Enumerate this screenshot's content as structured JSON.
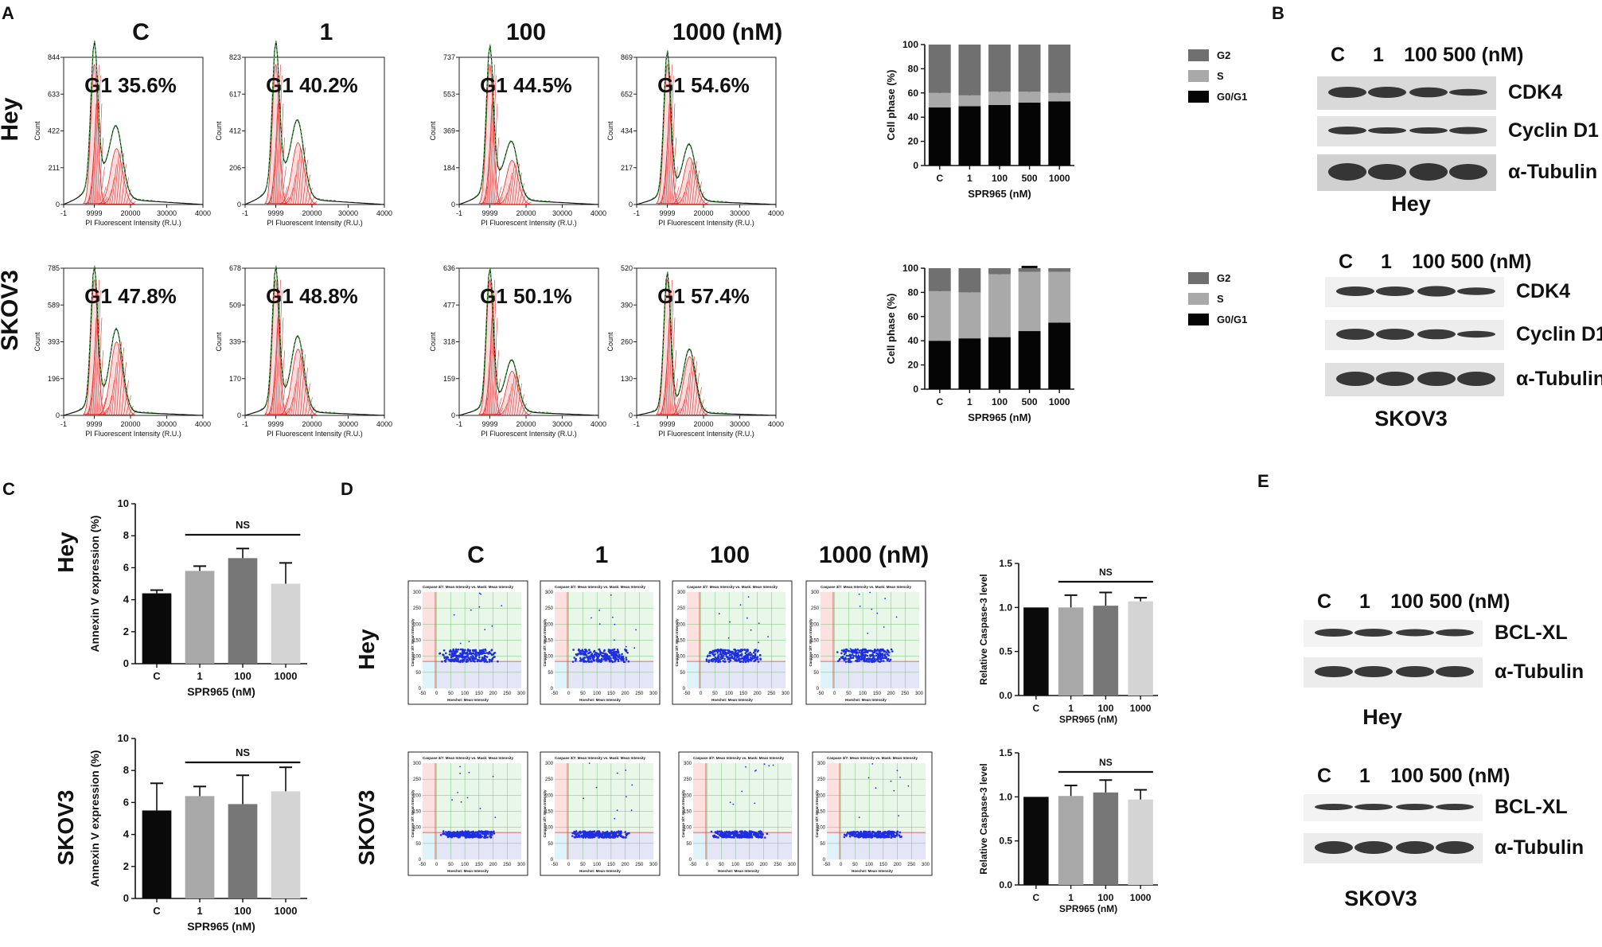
{
  "panel_labels": {
    "a": "A",
    "b": "B",
    "c": "C",
    "d": "D",
    "e": "E"
  },
  "cell_lines": [
    "Hey",
    "SKOV3"
  ],
  "histograms": {
    "concentrations": [
      "C",
      "1",
      "100",
      "1000 (nM)"
    ],
    "x_axis_label": "PI Fluorescent Intensity (R.U.)",
    "y_axis_label": "Count",
    "x_ticks": [
      "-1",
      "9999",
      "20000",
      "30000",
      "4000"
    ],
    "hey": {
      "g1_labels": [
        "G1 35.6%",
        "G1 40.2%",
        "G1 44.5%",
        "G1 54.6%"
      ],
      "y_ticks": [
        [
          "844",
          "633",
          "422",
          "211",
          "0"
        ],
        [
          "823",
          "617",
          "412",
          "206",
          "0"
        ],
        [
          "737",
          "553",
          "369",
          "184",
          "0"
        ],
        [
          "869",
          "652",
          "434",
          "217",
          "0"
        ]
      ]
    },
    "skov3": {
      "g1_labels": [
        "G1 47.8%",
        "G1 48.8%",
        "G1 50.1%",
        "G1 57.4%"
      ],
      "y_ticks": [
        [
          "785",
          "589",
          "393",
          "196",
          "0"
        ],
        [
          "678",
          "509",
          "339",
          "170",
          "0"
        ],
        [
          "636",
          "477",
          "318",
          "159",
          "0"
        ],
        [
          "520",
          "390",
          "260",
          "130",
          "0"
        ]
      ]
    }
  },
  "chart_data": [
    {
      "id": "cell-phase-hey",
      "type": "bar",
      "stacked": true,
      "title": "",
      "xlabel": "SPR965 (nM)",
      "ylabel": "Cell phase (%)",
      "categories": [
        "C",
        "1",
        "100",
        "500",
        "1000"
      ],
      "ylim": [
        0,
        100
      ],
      "yticks": [
        "0",
        "20",
        "40",
        "60",
        "80",
        "100"
      ],
      "series": [
        {
          "name": "G0/G1",
          "values": [
            48,
            49,
            50,
            52,
            53
          ],
          "errors": [
            1.5,
            2,
            1.5,
            2,
            3
          ]
        },
        {
          "name": "S",
          "values": [
            12,
            9,
            11,
            9,
            7
          ],
          "errors": [
            2,
            3,
            1.5,
            3.5,
            4
          ]
        },
        {
          "name": "G2",
          "values": [
            40,
            42,
            39,
            39,
            40
          ],
          "errors": [
            0,
            0,
            0,
            0,
            0
          ]
        }
      ],
      "legend": [
        "G2",
        "S",
        "G0/G1"
      ]
    },
    {
      "id": "cell-phase-skov3",
      "type": "bar",
      "stacked": true,
      "title": "",
      "xlabel": "SPR965 (nM)",
      "ylabel": "Cell phase (%)",
      "categories": [
        "C",
        "1",
        "100",
        "500",
        "1000"
      ],
      "ylim": [
        0,
        100
      ],
      "yticks": [
        "0",
        "20",
        "40",
        "60",
        "80",
        "100"
      ],
      "series": [
        {
          "name": "G0/G1",
          "values": [
            40,
            42,
            43,
            48,
            55
          ],
          "errors": [
            5,
            5,
            4,
            11,
            6
          ]
        },
        {
          "name": "S",
          "values": [
            41,
            38,
            52,
            49,
            42
          ],
          "errors": [
            2,
            5,
            2,
            4,
            2
          ]
        },
        {
          "name": "G2",
          "values": [
            19,
            20,
            5,
            3,
            3
          ],
          "errors": [
            0,
            0,
            0,
            0,
            0
          ]
        }
      ],
      "legend": [
        "G2",
        "S",
        "G0/G1"
      ]
    },
    {
      "id": "annexin-hey",
      "type": "bar",
      "xlabel": "SPR965 (nM)",
      "ylabel": "Annexin V expression (%)",
      "categories": [
        "C",
        "1",
        "100",
        "1000"
      ],
      "ylim": [
        0,
        10
      ],
      "yticks": [
        "0",
        "2",
        "4",
        "6",
        "8",
        "10"
      ],
      "values": [
        4.4,
        5.8,
        6.6,
        5.0
      ],
      "errors": [
        0.2,
        0.3,
        0.6,
        1.3
      ],
      "colors": [
        "#0a0a0a",
        "#a8a8a8",
        "#777777",
        "#d4d4d4"
      ],
      "annotation": "NS"
    },
    {
      "id": "annexin-skov3",
      "type": "bar",
      "xlabel": "SPR965 (nM)",
      "ylabel": "Annexin V expression (%)",
      "categories": [
        "C",
        "1",
        "100",
        "1000"
      ],
      "ylim": [
        0,
        10
      ],
      "yticks": [
        "0",
        "2",
        "4",
        "6",
        "8",
        "10"
      ],
      "values": [
        5.5,
        6.4,
        5.9,
        6.7
      ],
      "errors": [
        1.7,
        0.6,
        1.8,
        1.5
      ],
      "colors": [
        "#0a0a0a",
        "#a8a8a8",
        "#777777",
        "#d4d4d4"
      ],
      "annotation": "NS"
    },
    {
      "id": "caspase-hey",
      "type": "bar",
      "xlabel": "SPR965 (nM)",
      "ylabel": "Relative Caspase-3 level",
      "categories": [
        "C",
        "1",
        "100",
        "1000"
      ],
      "ylim": [
        0,
        1.5
      ],
      "yticks": [
        "0.0",
        "0.5",
        "1.0",
        "1.5"
      ],
      "values": [
        1.0,
        1.0,
        1.02,
        1.07
      ],
      "errors": [
        0,
        0.14,
        0.15,
        0.04
      ],
      "colors": [
        "#0a0a0a",
        "#a8a8a8",
        "#777777",
        "#d4d4d4"
      ],
      "annotation": "NS"
    },
    {
      "id": "caspase-skov3",
      "type": "bar",
      "xlabel": "SPR965 (nM)",
      "ylabel": "Relative Caspase-3 level",
      "categories": [
        "C",
        "1",
        "100",
        "1000"
      ],
      "ylim": [
        0,
        1.5
      ],
      "yticks": [
        "0.0",
        "0.5",
        "1.0",
        "1.5"
      ],
      "values": [
        1.0,
        1.01,
        1.05,
        0.97
      ],
      "errors": [
        0,
        0.12,
        0.14,
        0.11
      ],
      "colors": [
        "#0a0a0a",
        "#a8a8a8",
        "#777777",
        "#d4d4d4"
      ],
      "annotation": "NS"
    }
  ],
  "western_b": {
    "hey": {
      "lanes": [
        "C",
        "1",
        "100",
        "500 (nM)"
      ],
      "proteins": [
        "CDK4",
        "Cyclin D1",
        "α-Tubulin"
      ],
      "cell_line": "Hey"
    },
    "skov3": {
      "lanes": [
        "C",
        "1",
        "100",
        "500 (nM)"
      ],
      "proteins": [
        "CDK4",
        "Cyclin D1",
        "α-Tubulin"
      ],
      "cell_line": "SKOV3"
    }
  },
  "western_e": {
    "hey": {
      "lanes": [
        "C",
        "1",
        "100",
        "500 (nM)"
      ],
      "proteins": [
        "BCL-XL",
        "α-Tubulin"
      ],
      "cell_line": "Hey"
    },
    "skov3": {
      "lanes": [
        "C",
        "1",
        "100",
        "500 (nM)"
      ],
      "proteins": [
        "BCL-XL",
        "α-Tubulin"
      ],
      "cell_line": "SKOV3"
    }
  },
  "imaging_d": {
    "concentrations": [
      "C",
      "1",
      "100",
      "1000 (nM)"
    ],
    "plot_title": "Caspase 3/7: Mean Intensity vs. Mask: Mean Intensity",
    "x_axis_label": "Hoechst: Mean Intensity",
    "y_axis_label": "Caspase 3/7: Mean Intensity",
    "x_ticks": [
      "-50",
      "0",
      "50",
      "100",
      "150",
      "200",
      "250",
      "300"
    ],
    "y_ticks": [
      "300",
      "250",
      "200",
      "150",
      "100",
      "50",
      "0"
    ]
  }
}
